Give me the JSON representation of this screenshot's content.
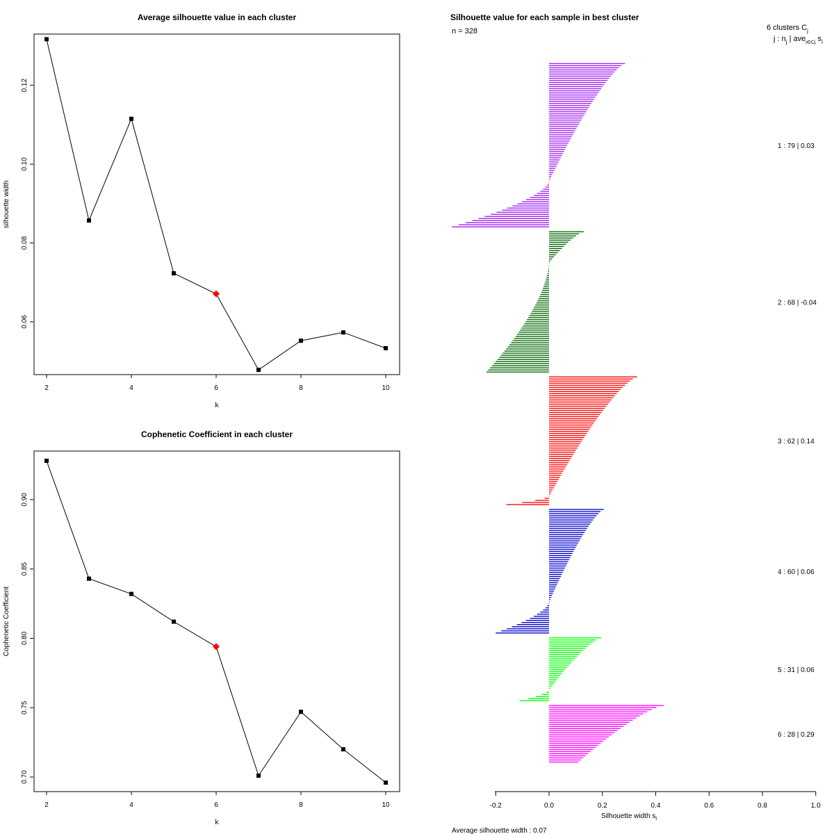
{
  "chart_data": [
    {
      "type": "line",
      "title": "Average silhouette value in each cluster",
      "xlabel": "k",
      "ylabel": "silhouette width",
      "x": [
        2,
        3,
        4,
        5,
        6,
        7,
        8,
        9,
        10
      ],
      "y": [
        0.1317,
        0.0857,
        0.1115,
        0.0723,
        0.0671,
        0.0478,
        0.0552,
        0.0573,
        0.0533
      ],
      "highlight_k": 6,
      "highlight_color": "#ff0000",
      "xlim": [
        2,
        10
      ],
      "ylim": [
        0.0466,
        0.133
      ],
      "xticks": [
        2,
        4,
        6,
        8,
        10
      ],
      "xtick_labels": [
        "2",
        "4",
        "6",
        "8",
        "10"
      ],
      "yticks": [
        0.06,
        0.08,
        0.1,
        0.12
      ],
      "ytick_labels": [
        "0.06",
        "0.08",
        "0.10",
        "0.12"
      ]
    },
    {
      "type": "line",
      "title": "Cophenetic Coefficient in each cluster",
      "xlabel": "k",
      "ylabel": "Cophenetic Coefficient",
      "x": [
        2,
        3,
        4,
        5,
        6,
        7,
        8,
        9,
        10
      ],
      "y": [
        0.928,
        0.843,
        0.832,
        0.812,
        0.794,
        0.701,
        0.747,
        0.72,
        0.696
      ],
      "highlight_k": 6,
      "highlight_color": "#ff0000",
      "xlim": [
        2,
        10
      ],
      "ylim": [
        0.6895,
        0.935
      ],
      "xticks": [
        2,
        4,
        6,
        8,
        10
      ],
      "xtick_labels": [
        "2",
        "4",
        "6",
        "8",
        "10"
      ],
      "yticks": [
        0.7,
        0.75,
        0.8,
        0.85,
        0.9
      ],
      "ytick_labels": [
        "0.70",
        "0.75",
        "0.80",
        "0.85",
        "0.90"
      ]
    },
    {
      "type": "bar",
      "orientation": "horizontal",
      "title": "Silhouette value for each sample in best cluster",
      "n_label": "n = 328",
      "header_line1": "6  clusters  C",
      "header_sub1": "j",
      "header_line2": "j :  n",
      "header_sub2": "j",
      "header_line3": " | ave",
      "header_sub3": "i∈Cj",
      "header_line4": "  s",
      "header_sub4": "i",
      "xlabel": "Silhouette width s",
      "xlabel_sub": "i",
      "footer": "Average silhouette width :  0.07",
      "xlim": [
        -0.2,
        1.0
      ],
      "xticks": [
        -0.2,
        0.0,
        0.2,
        0.4,
        0.6,
        0.8,
        1.0
      ],
      "xtick_labels": [
        "-0.2",
        "0.0",
        "0.2",
        "0.4",
        "0.6",
        "0.8",
        "1.0"
      ],
      "clusters": [
        {
          "id": 1,
          "n": 79,
          "avg": "0.03",
          "label": "1 :   79  |  0.03",
          "color": "#a020f0",
          "max": 0.285,
          "zero_frac": 0.72,
          "min": -0.365
        },
        {
          "id": 2,
          "n": 68,
          "avg": "-0.04",
          "label": "2 :   68  |  -0.04",
          "color": "#006400",
          "max": 0.13,
          "zero_frac": 0.22,
          "min": -0.235
        },
        {
          "id": 3,
          "n": 62,
          "avg": "0.14",
          "label": "3 :   62  |  0.14",
          "color": "#ff0000",
          "max": 0.33,
          "zero_frac": 0.935,
          "min": -0.16
        },
        {
          "id": 4,
          "n": 60,
          "avg": "0.06",
          "label": "4 :   60  |  0.06",
          "color": "#0000cd",
          "max": 0.205,
          "zero_frac": 0.75,
          "min": -0.2
        },
        {
          "id": 5,
          "n": 31,
          "avg": "0.06",
          "label": "5 :   31  |  0.06",
          "color": "#00ff00",
          "max": 0.195,
          "zero_frac": 0.83,
          "min": -0.11
        },
        {
          "id": 6,
          "n": 28,
          "avg": "0.29",
          "label": "6 :   28  |  0.29",
          "color": "#ff00ff",
          "max": 0.43,
          "zero_frac": 1.0,
          "min": 0.11
        }
      ]
    }
  ]
}
